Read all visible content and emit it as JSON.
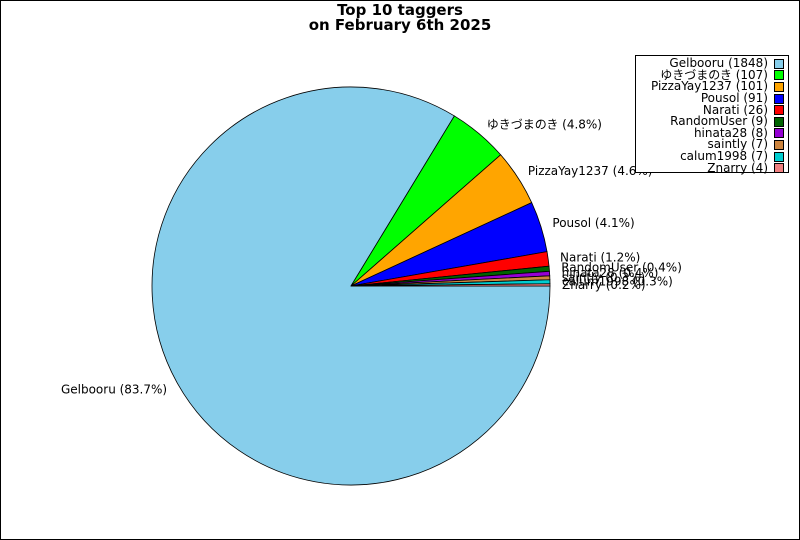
{
  "chart_data": {
    "type": "pie",
    "title": "Top 10 taggers\non February 6th 2025",
    "legend_position": "top-right",
    "start_angle_deg": 0,
    "direction": "clockwise",
    "slices": [
      {
        "name": "Gelbooru",
        "value": 1848,
        "legend": "Gelbooru (1848)",
        "label": "Gelbooru (83.7%)",
        "color": "#87ceeb"
      },
      {
        "name": "ゆきづまのき",
        "value": 107,
        "legend": "ゆきづまのき (107)",
        "label": "ゆきづまのき (4.8%)",
        "color": "#00ff00"
      },
      {
        "name": "PizzaYay1237",
        "value": 101,
        "legend": "PizzaYay1237 (101)",
        "label": "PizzaYay1237 (4.6%)",
        "color": "#ffa500"
      },
      {
        "name": "Pousol",
        "value": 91,
        "legend": "Pousol (91)",
        "label": "Pousol (4.1%)",
        "color": "#0000ff"
      },
      {
        "name": "Narati",
        "value": 26,
        "legend": "Narati (26)",
        "label": "Narati (1.2%)",
        "color": "#ff0000"
      },
      {
        "name": "RandomUser",
        "value": 9,
        "legend": "RandomUser (9)",
        "label": "RandomUser (0.4%)",
        "color": "#006400"
      },
      {
        "name": "hinata28",
        "value": 8,
        "legend": "hinata28 (8)",
        "label": "hinata28 (0.4%)",
        "color": "#9400d3"
      },
      {
        "name": "saintly",
        "value": 7,
        "legend": "saintly (7)",
        "label": "saintly (0.3%)",
        "color": "#cd853f"
      },
      {
        "name": "calum1998",
        "value": 7,
        "legend": "calum1998 (7)",
        "label": "calum1998 (0.3%)",
        "color": "#00ced1"
      },
      {
        "name": "Znarry",
        "value": 4,
        "legend": "Znarry (4)",
        "label": "Znarry (0.2%)",
        "color": "#f08080"
      }
    ]
  }
}
